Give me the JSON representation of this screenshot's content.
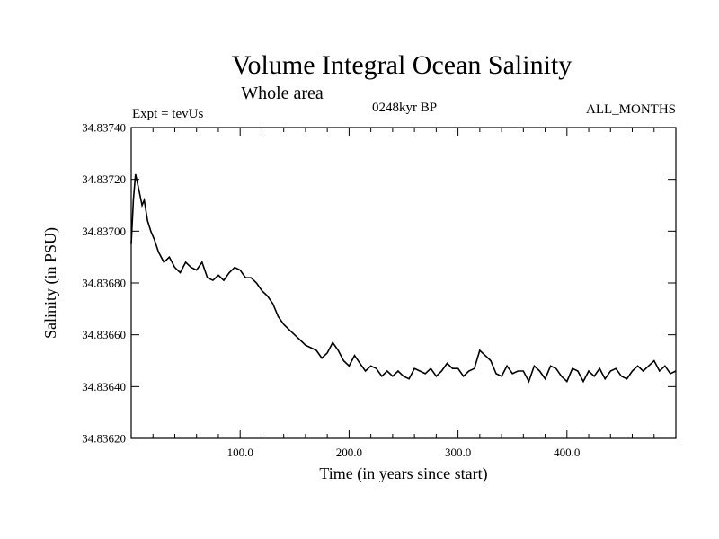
{
  "chart_data": {
    "type": "line",
    "title": "Volume Integral Ocean Salinity",
    "subtitle": "Whole area",
    "annotations": {
      "left": "Expt = tevUs",
      "center": "0248kyr BP",
      "right": "ALL_MONTHS"
    },
    "xlabel": "Time (in years since start)",
    "ylabel": "Salinity (in PSU)",
    "xlim": [
      0,
      500
    ],
    "ylim": [
      34.8362,
      34.8374
    ],
    "x_ticks": [
      100,
      200,
      300,
      400
    ],
    "x_tick_labels": [
      "100.0",
      "200.0",
      "300.0",
      "400.0"
    ],
    "y_ticks": [
      34.8362,
      34.8364,
      34.8366,
      34.8368,
      34.837,
      34.8372,
      34.8374
    ],
    "y_tick_labels": [
      "34.83620",
      "34.83640",
      "34.83660",
      "34.83680",
      "34.83700",
      "34.83720",
      "34.83740"
    ],
    "grid": false,
    "line_color": "#000000",
    "series": [
      {
        "x": [
          0,
          2,
          4,
          6,
          8,
          10,
          12,
          15,
          18,
          21,
          25,
          30,
          35,
          40,
          45,
          50,
          55,
          60,
          65,
          70,
          75,
          80,
          85,
          90,
          95,
          100,
          105,
          110,
          115,
          120,
          125,
          130,
          135,
          140,
          145,
          150,
          155,
          160,
          165,
          170,
          175,
          180,
          185,
          190,
          195,
          200,
          205,
          210,
          215,
          220,
          225,
          230,
          235,
          240,
          245,
          250,
          255,
          260,
          265,
          270,
          275,
          280,
          285,
          290,
          295,
          300,
          305,
          310,
          315,
          320,
          325,
          330,
          335,
          340,
          345,
          350,
          355,
          360,
          365,
          370,
          375,
          380,
          385,
          390,
          395,
          400,
          405,
          410,
          415,
          420,
          425,
          430,
          435,
          440,
          445,
          450,
          455,
          460,
          465,
          470,
          475,
          480,
          485,
          490,
          495,
          500
        ],
        "y": [
          34.83695,
          34.83712,
          34.83722,
          34.83718,
          34.83714,
          34.8371,
          34.83712,
          34.83704,
          34.837,
          34.83697,
          34.83692,
          34.83688,
          34.8369,
          34.83686,
          34.83684,
          34.83688,
          34.83686,
          34.83685,
          34.83688,
          34.83682,
          34.83681,
          34.83683,
          34.83681,
          34.83684,
          34.83686,
          34.83685,
          34.83682,
          34.83682,
          34.8368,
          34.83677,
          34.83675,
          34.83672,
          34.83667,
          34.83664,
          34.83662,
          34.8366,
          34.83658,
          34.83656,
          34.83655,
          34.83654,
          34.83651,
          34.83653,
          34.83657,
          34.83654,
          34.8365,
          34.83648,
          34.83652,
          34.83649,
          34.83646,
          34.83648,
          34.83647,
          34.83644,
          34.83646,
          34.83644,
          34.83646,
          34.83644,
          34.83643,
          34.83647,
          34.83646,
          34.83645,
          34.83647,
          34.83644,
          34.83646,
          34.83649,
          34.83647,
          34.83647,
          34.83644,
          34.83646,
          34.83647,
          34.83654,
          34.83652,
          34.8365,
          34.83645,
          34.83644,
          34.83648,
          34.83645,
          34.83646,
          34.83646,
          34.83642,
          34.83648,
          34.83646,
          34.83643,
          34.83648,
          34.83647,
          34.83644,
          34.83642,
          34.83647,
          34.83646,
          34.83642,
          34.83646,
          34.83644,
          34.83647,
          34.83643,
          34.83646,
          34.83647,
          34.83644,
          34.83643,
          34.83646,
          34.83648,
          34.83646,
          34.83648,
          34.8365,
          34.83646,
          34.83648,
          34.83645,
          34.83646
        ]
      }
    ]
  }
}
